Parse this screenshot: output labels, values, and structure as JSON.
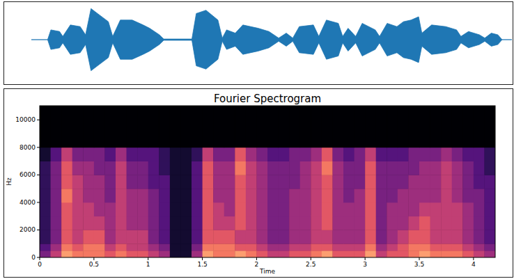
{
  "chart_data": [
    {
      "type": "area",
      "color": "#1f77b4",
      "tick_labels": false,
      "xlim": [
        -0.08,
        4.35
      ],
      "ylim": [
        -1,
        1
      ],
      "x": [
        -0.08,
        0.07,
        0.1,
        0.18,
        0.21,
        0.28,
        0.37,
        0.42,
        0.47,
        0.53,
        0.63,
        0.67,
        0.74,
        0.85,
        0.95,
        1.01,
        1.1,
        1.14,
        1.4,
        1.44,
        1.53,
        1.64,
        1.68,
        1.72,
        1.8,
        1.87,
        2.01,
        2.11,
        2.2,
        2.27,
        2.33,
        2.39,
        2.52,
        2.57,
        2.64,
        2.75,
        2.79,
        2.84,
        2.91,
        2.97,
        3.09,
        3.13,
        3.2,
        3.29,
        3.35,
        3.42,
        3.49,
        3.52,
        3.61,
        3.74,
        3.84,
        3.88,
        3.95,
        4.05,
        4.1,
        4.16,
        4.22,
        4.26,
        4.35
      ],
      "values": [
        0,
        0,
        0.3,
        0.25,
        0.1,
        0.45,
        0.4,
        0.15,
        0.95,
        0.8,
        0.55,
        0.1,
        0.6,
        0.6,
        0.45,
        0.35,
        0.15,
        0.02,
        0.02,
        0.8,
        0.9,
        0.6,
        0.05,
        0.3,
        0.2,
        0.45,
        0.35,
        0.25,
        0.05,
        0.2,
        0.05,
        0.4,
        0.45,
        0.1,
        0.6,
        0.5,
        0.1,
        0.35,
        0.1,
        0.5,
        0.3,
        0.1,
        0.5,
        0.4,
        0.55,
        0.6,
        0.7,
        0.2,
        0.45,
        0.4,
        0.3,
        0.1,
        0.25,
        0.15,
        0.05,
        0.2,
        0.15,
        0,
        0
      ]
    },
    {
      "type": "heatmap",
      "title": "Fourier Spectrogram",
      "x_label": "Time",
      "y_label": "Hz",
      "xlim": [
        0,
        4.2
      ],
      "ylim": [
        0,
        11025
      ],
      "xticks": [
        0,
        0.5,
        1,
        1.5,
        2,
        2.5,
        3,
        3.5,
        4
      ],
      "yticks": [
        0,
        2000,
        4000,
        6000,
        8000,
        10000
      ],
      "x_edges": [
        0,
        0.1,
        0.2,
        0.3,
        0.4,
        0.5,
        0.6,
        0.7,
        0.8,
        0.9,
        1.0,
        1.1,
        1.2,
        1.3,
        1.4,
        1.5,
        1.6,
        1.7,
        1.8,
        1.9,
        2.0,
        2.1,
        2.2,
        2.3,
        2.4,
        2.5,
        2.6,
        2.7,
        2.8,
        2.9,
        3.0,
        3.1,
        3.2,
        3.3,
        3.4,
        3.5,
        3.6,
        3.7,
        3.8,
        3.9,
        4.0,
        4.1,
        4.2
      ],
      "y_edges": [
        0,
        500,
        1000,
        2000,
        3000,
        4000,
        5000,
        6000,
        7000,
        8000,
        11025
      ],
      "cells": [
        [
          4,
          6,
          9,
          8,
          8,
          8,
          7,
          8,
          7,
          7,
          6,
          5,
          1,
          1,
          5,
          9,
          8,
          8,
          9,
          8,
          7,
          6,
          6,
          7,
          7,
          8,
          9,
          7,
          7,
          7,
          9,
          6,
          7,
          7,
          8,
          9,
          8,
          8,
          8,
          7,
          6,
          5
        ],
        [
          3,
          5,
          8,
          7,
          8,
          8,
          6,
          7,
          6,
          6,
          5,
          4,
          1,
          1,
          4,
          8,
          8,
          8,
          7,
          7,
          6,
          5,
          5,
          6,
          6,
          7,
          7,
          6,
          6,
          6,
          8,
          5,
          6,
          7,
          8,
          8,
          7,
          7,
          7,
          6,
          5,
          4
        ],
        [
          2,
          4,
          7,
          6,
          7,
          7,
          5,
          6,
          6,
          6,
          4,
          3,
          1,
          1,
          3,
          7,
          7,
          7,
          6,
          6,
          5,
          4,
          4,
          5,
          5,
          6,
          6,
          5,
          5,
          5,
          7,
          4,
          5,
          6,
          7,
          7,
          6,
          6,
          6,
          5,
          4,
          3
        ],
        [
          2,
          4,
          7,
          6,
          6,
          6,
          5,
          6,
          5,
          5,
          4,
          3,
          1,
          1,
          3,
          7,
          6,
          6,
          7,
          6,
          5,
          4,
          4,
          5,
          5,
          6,
          7,
          5,
          5,
          5,
          7,
          4,
          5,
          5,
          6,
          7,
          6,
          6,
          6,
          5,
          4,
          3
        ],
        [
          2,
          4,
          7,
          6,
          6,
          5,
          5,
          6,
          5,
          5,
          4,
          3,
          1,
          1,
          3,
          7,
          6,
          5,
          7,
          6,
          5,
          4,
          4,
          5,
          5,
          6,
          7,
          5,
          5,
          5,
          7,
          4,
          5,
          5,
          5,
          6,
          6,
          6,
          6,
          5,
          4,
          3
        ],
        [
          2,
          4,
          8,
          6,
          5,
          5,
          4,
          6,
          5,
          5,
          4,
          3,
          1,
          1,
          3,
          7,
          5,
          5,
          7,
          6,
          5,
          4,
          4,
          5,
          5,
          6,
          7,
          5,
          4,
          5,
          7,
          4,
          4,
          5,
          5,
          5,
          5,
          6,
          5,
          4,
          4,
          3
        ],
        [
          2,
          4,
          7,
          6,
          5,
          5,
          4,
          6,
          4,
          4,
          3,
          3,
          1,
          1,
          3,
          7,
          5,
          5,
          7,
          6,
          5,
          4,
          4,
          4,
          5,
          6,
          7,
          5,
          4,
          4,
          7,
          4,
          4,
          4,
          5,
          5,
          5,
          6,
          5,
          4,
          3,
          3
        ],
        [
          2,
          4,
          7,
          5,
          5,
          4,
          4,
          6,
          4,
          4,
          3,
          2,
          1,
          1,
          3,
          7,
          5,
          5,
          8,
          6,
          5,
          4,
          4,
          4,
          5,
          6,
          8,
          5,
          4,
          4,
          7,
          4,
          4,
          4,
          4,
          5,
          5,
          6,
          5,
          4,
          3,
          2
        ],
        [
          1,
          3,
          6,
          4,
          4,
          4,
          3,
          5,
          3,
          3,
          3,
          2,
          1,
          1,
          2,
          6,
          4,
          4,
          7,
          5,
          4,
          3,
          3,
          4,
          4,
          5,
          7,
          4,
          3,
          4,
          6,
          3,
          3,
          3,
          4,
          4,
          4,
          5,
          4,
          3,
          3,
          2
        ],
        [
          0,
          0,
          0,
          0,
          0,
          0,
          0,
          0,
          0,
          0,
          0,
          0,
          0,
          0,
          0,
          0,
          0,
          0,
          0,
          0,
          0,
          0,
          0,
          0,
          0,
          0,
          0,
          0,
          0,
          0,
          0,
          0,
          0,
          0,
          0,
          0,
          0,
          0,
          0,
          0,
          0,
          0
        ]
      ]
    }
  ]
}
